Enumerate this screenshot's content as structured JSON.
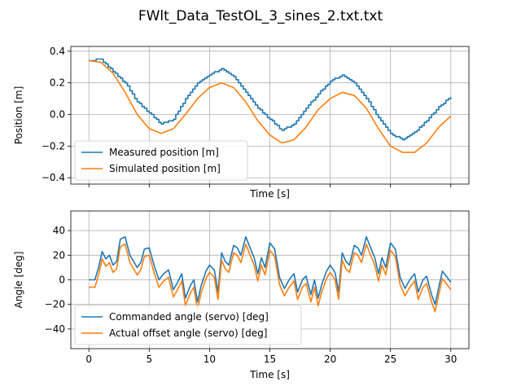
{
  "figure": {
    "title": "FWlt_Data_TestOL_3_sines_2.txt.txt"
  },
  "colors": {
    "series_a": "#1f77b4",
    "series_b": "#ff7f0e",
    "grid": "#b0b0b0"
  },
  "chart_data": [
    {
      "type": "line",
      "xlabel": "Time [s]",
      "ylabel": "Position [m]",
      "xlim": [
        -1.5,
        31.5
      ],
      "ylim": [
        -0.44,
        0.43
      ],
      "xticks": [
        0,
        5,
        10,
        15,
        20,
        25,
        30
      ],
      "yticks": [
        -0.4,
        -0.2,
        0.0,
        0.2,
        0.4
      ],
      "ytick_labels": [
        "−0.4",
        "−0.2",
        "0.0",
        "0.2",
        "0.4"
      ],
      "show_xtick_labels": false,
      "grid": true,
      "legend": "lower-left",
      "series": [
        {
          "name": "Measured position [m]",
          "step": 0.2,
          "x": [
            0,
            1,
            2,
            3,
            4,
            5,
            6,
            7,
            8,
            9,
            10,
            11,
            12,
            13,
            14,
            15,
            16,
            17,
            18,
            19,
            20,
            21,
            22,
            23,
            24,
            25,
            26,
            27,
            28,
            29,
            30
          ],
          "y": [
            0.34,
            0.35,
            0.27,
            0.2,
            0.08,
            0.01,
            -0.06,
            -0.03,
            0.1,
            0.2,
            0.25,
            0.29,
            0.24,
            0.14,
            0.04,
            -0.03,
            -0.1,
            -0.06,
            0.04,
            0.13,
            0.21,
            0.25,
            0.2,
            0.1,
            -0.02,
            -0.12,
            -0.16,
            -0.11,
            -0.04,
            0.05,
            0.11
          ]
        },
        {
          "name": "Simulated position [m]",
          "x": [
            0,
            1,
            2,
            3,
            4,
            5,
            6,
            7,
            8,
            9,
            10,
            11,
            12,
            13,
            14,
            15,
            16,
            17,
            18,
            19,
            20,
            21,
            22,
            23,
            24,
            25,
            26,
            27,
            28,
            29,
            30
          ],
          "y": [
            0.34,
            0.33,
            0.26,
            0.14,
            0.0,
            -0.09,
            -0.12,
            -0.09,
            0.0,
            0.1,
            0.17,
            0.2,
            0.17,
            0.08,
            -0.04,
            -0.13,
            -0.18,
            -0.16,
            -0.08,
            0.03,
            0.1,
            0.14,
            0.12,
            0.04,
            -0.09,
            -0.2,
            -0.24,
            -0.24,
            -0.18,
            -0.08,
            -0.01
          ]
        }
      ]
    },
    {
      "type": "line",
      "xlabel": "Time [s]",
      "ylabel": "Angle [deg]",
      "xlim": [
        -1.5,
        31.5
      ],
      "ylim": [
        -56,
        56
      ],
      "xticks": [
        0,
        5,
        10,
        15,
        20,
        25,
        30
      ],
      "yticks": [
        -40,
        -20,
        0,
        20,
        40
      ],
      "ytick_labels": [
        "−40",
        "−20",
        "0",
        "20",
        "40"
      ],
      "show_xtick_labels": true,
      "grid": true,
      "legend": "lower-left",
      "series": [
        {
          "name": "Commanded angle (servo) [deg]",
          "x": [
            0,
            0.5,
            0.8,
            1.1,
            1.4,
            1.7,
            2.0,
            2.3,
            2.6,
            3.0,
            3.4,
            3.7,
            4.0,
            4.3,
            4.6,
            5.0,
            5.4,
            5.8,
            6.2,
            6.6,
            7.0,
            7.3,
            7.7,
            8.0,
            8.4,
            8.7,
            9.0,
            9.3,
            9.7,
            10.0,
            10.4,
            10.7,
            11.0,
            11.3,
            11.6,
            12.0,
            12.3,
            12.6,
            13.0,
            13.4,
            13.7,
            14.0,
            14.3,
            14.6,
            15.0,
            15.4,
            15.8,
            16.2,
            16.6,
            17.0,
            17.3,
            17.7,
            18.0,
            18.4,
            18.7,
            19.0,
            19.3,
            19.7,
            20.0,
            20.4,
            20.7,
            21.0,
            21.3,
            21.6,
            22.0,
            22.3,
            22.6,
            23.0,
            23.4,
            23.7,
            24.0,
            24.3,
            24.6,
            25.0,
            25.4,
            25.8,
            26.2,
            26.6,
            27.0,
            27.3,
            27.7,
            28.0,
            28.4,
            28.7,
            29.0,
            29.3,
            29.7,
            30.0
          ],
          "y": [
            0,
            0,
            10,
            23,
            17,
            20,
            12,
            15,
            33,
            35,
            20,
            15,
            10,
            14,
            25,
            26,
            12,
            0,
            5,
            8,
            -8,
            -3,
            5,
            -15,
            -5,
            0,
            -18,
            -5,
            7,
            12,
            8,
            -10,
            22,
            15,
            12,
            28,
            26,
            20,
            35,
            25,
            18,
            5,
            18,
            10,
            30,
            25,
            2,
            -7,
            0,
            5,
            -10,
            0,
            3,
            -12,
            0,
            -15,
            -4,
            7,
            12,
            6,
            -10,
            22,
            15,
            12,
            28,
            26,
            20,
            35,
            25,
            18,
            5,
            18,
            10,
            30,
            25,
            2,
            -7,
            0,
            5,
            -10,
            0,
            3,
            -12,
            -20,
            -6,
            7,
            2,
            -2
          ]
        },
        {
          "name": "Actual offset angle (servo) [deg]",
          "x": [
            0,
            0.5,
            0.8,
            1.1,
            1.4,
            1.7,
            2.0,
            2.3,
            2.6,
            3.0,
            3.4,
            3.7,
            4.0,
            4.3,
            4.6,
            5.0,
            5.4,
            5.8,
            6.2,
            6.6,
            7.0,
            7.3,
            7.7,
            8.0,
            8.4,
            8.7,
            9.0,
            9.3,
            9.7,
            10.0,
            10.4,
            10.7,
            11.0,
            11.3,
            11.6,
            12.0,
            12.3,
            12.6,
            13.0,
            13.4,
            13.7,
            14.0,
            14.3,
            14.6,
            15.0,
            15.4,
            15.8,
            16.2,
            16.6,
            17.0,
            17.3,
            17.7,
            18.0,
            18.4,
            18.7,
            19.0,
            19.3,
            19.7,
            20.0,
            20.4,
            20.7,
            21.0,
            21.3,
            21.6,
            22.0,
            22.3,
            22.6,
            23.0,
            23.4,
            23.7,
            24.0,
            24.3,
            24.6,
            25.0,
            25.4,
            25.8,
            26.2,
            26.6,
            27.0,
            27.3,
            27.7,
            28.0,
            28.4,
            28.7,
            29.0,
            29.3,
            29.7,
            30.0
          ],
          "y": [
            -6,
            -6,
            4,
            17,
            11,
            14,
            6,
            9,
            27,
            29,
            14,
            9,
            4,
            8,
            19,
            20,
            6,
            -6,
            -1,
            2,
            -14,
            -9,
            -1,
            -21,
            -11,
            -6,
            -24,
            -11,
            1,
            6,
            2,
            -16,
            16,
            9,
            6,
            22,
            20,
            14,
            29,
            19,
            12,
            -1,
            12,
            4,
            24,
            19,
            -4,
            -13,
            -6,
            -1,
            -16,
            -6,
            -3,
            -18,
            -6,
            -21,
            -10,
            1,
            6,
            0,
            -16,
            16,
            9,
            6,
            22,
            20,
            14,
            29,
            19,
            12,
            -1,
            12,
            4,
            24,
            19,
            -4,
            -13,
            -6,
            -1,
            -16,
            -6,
            -3,
            -18,
            -26,
            -12,
            1,
            -4,
            -8
          ]
        }
      ]
    }
  ]
}
